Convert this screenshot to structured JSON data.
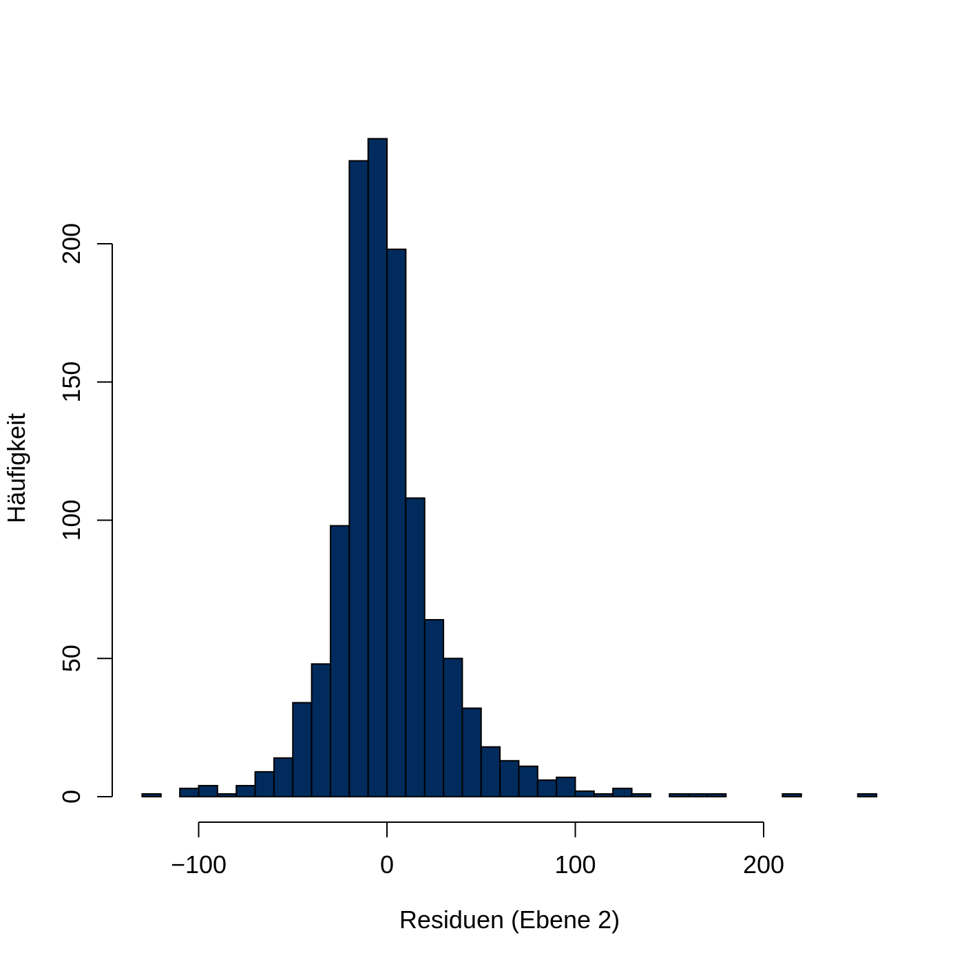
{
  "chart_data": {
    "type": "bar",
    "subtype": "histogram",
    "xlabel": "Residuen (Ebene 2)",
    "ylabel": "Häufigkeit",
    "bar_color": "#002B5C",
    "bin_width": 10,
    "bins": [
      {
        "from": -130,
        "to": -120,
        "count": 1
      },
      {
        "from": -120,
        "to": -110,
        "count": 0
      },
      {
        "from": -110,
        "to": -100,
        "count": 3
      },
      {
        "from": -100,
        "to": -90,
        "count": 4
      },
      {
        "from": -90,
        "to": -80,
        "count": 1
      },
      {
        "from": -80,
        "to": -70,
        "count": 4
      },
      {
        "from": -70,
        "to": -60,
        "count": 9
      },
      {
        "from": -60,
        "to": -50,
        "count": 14
      },
      {
        "from": -50,
        "to": -40,
        "count": 34
      },
      {
        "from": -40,
        "to": -30,
        "count": 48
      },
      {
        "from": -30,
        "to": -20,
        "count": 98
      },
      {
        "from": -20,
        "to": -10,
        "count": 230
      },
      {
        "from": -10,
        "to": 0,
        "count": 238
      },
      {
        "from": 0,
        "to": 10,
        "count": 198
      },
      {
        "from": 10,
        "to": 20,
        "count": 108
      },
      {
        "from": 20,
        "to": 30,
        "count": 64
      },
      {
        "from": 30,
        "to": 40,
        "count": 50
      },
      {
        "from": 40,
        "to": 50,
        "count": 32
      },
      {
        "from": 50,
        "to": 60,
        "count": 18
      },
      {
        "from": 60,
        "to": 70,
        "count": 13
      },
      {
        "from": 70,
        "to": 80,
        "count": 11
      },
      {
        "from": 80,
        "to": 90,
        "count": 6
      },
      {
        "from": 90,
        "to": 100,
        "count": 7
      },
      {
        "from": 100,
        "to": 110,
        "count": 2
      },
      {
        "from": 110,
        "to": 120,
        "count": 1
      },
      {
        "from": 120,
        "to": 130,
        "count": 3
      },
      {
        "from": 130,
        "to": 140,
        "count": 1
      },
      {
        "from": 140,
        "to": 150,
        "count": 0
      },
      {
        "from": 150,
        "to": 160,
        "count": 1
      },
      {
        "from": 160,
        "to": 170,
        "count": 1
      },
      {
        "from": 170,
        "to": 180,
        "count": 1
      },
      {
        "from": 180,
        "to": 190,
        "count": 0
      },
      {
        "from": 190,
        "to": 200,
        "count": 0
      },
      {
        "from": 200,
        "to": 210,
        "count": 0
      },
      {
        "from": 210,
        "to": 220,
        "count": 1
      },
      {
        "from": 220,
        "to": 230,
        "count": 0
      },
      {
        "from": 230,
        "to": 240,
        "count": 0
      },
      {
        "from": 240,
        "to": 250,
        "count": 0
      },
      {
        "from": 250,
        "to": 260,
        "count": 1
      }
    ],
    "xlim": [
      -130,
      260
    ],
    "ylim": [
      0,
      238
    ],
    "x_ticks": [
      -100,
      0,
      100,
      200
    ],
    "x_tick_labels": [
      "−100",
      "0",
      "100",
      "200"
    ],
    "y_ticks": [
      0,
      50,
      100,
      150,
      200
    ],
    "y_tick_labels": [
      "0",
      "50",
      "100",
      "150",
      "200"
    ],
    "grid": false,
    "legend": "none"
  }
}
